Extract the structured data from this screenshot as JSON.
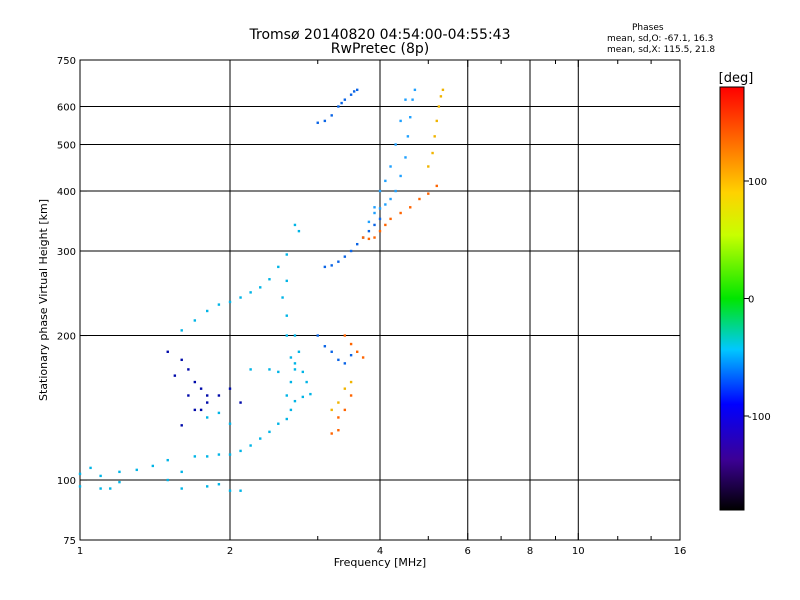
{
  "chart_data": {
    "type": "scatter",
    "title": "Tromsø 20140820 04:54:00-04:55:43",
    "subtitle": "RwPretec (8p)",
    "xlabel": "Frequency [MHz]",
    "ylabel": "Stationary phase Virtual Height [km]",
    "x_scale": "log",
    "y_scale": "log",
    "xlim": [
      1,
      16
    ],
    "ylim": [
      75,
      750
    ],
    "x_ticks": [
      1,
      2,
      4,
      6,
      8,
      10,
      16
    ],
    "x_tick_labels": [
      "1",
      "2",
      "4",
      "6",
      "8",
      "10",
      "16"
    ],
    "x_minor_ticks": [
      3,
      5,
      7,
      9,
      12,
      14
    ],
    "x_grid": [
      2,
      4,
      6,
      8,
      10
    ],
    "y_ticks": [
      75,
      100,
      200,
      300,
      400,
      500,
      600,
      750
    ],
    "y_tick_labels": [
      "75",
      "100",
      "200",
      "300",
      "400",
      "500",
      "600",
      "750"
    ],
    "y_grid": [
      100,
      200,
      300,
      400,
      500,
      600
    ],
    "grid": true,
    "legend_position": "top-right",
    "phases": {
      "header": "Phases",
      "o_stats": "mean, sd,O: -67.1, 16.3",
      "x_stats": "mean, sd,X: 115.5, 21.8"
    },
    "colorbar": {
      "label": "[deg]",
      "min": -180,
      "max": 180,
      "ticks": [
        100,
        0,
        -100
      ],
      "tick_labels": [
        "100",
        "0",
        "-100"
      ]
    },
    "series": [
      {
        "color": "#00b4e6",
        "phase_deg": -75,
        "points": [
          [
            1,
            103
          ],
          [
            1.05,
            106
          ],
          [
            1.1,
            102
          ],
          [
            1.2,
            104
          ],
          [
            1.3,
            105
          ],
          [
            1.4,
            107
          ],
          [
            1.5,
            110
          ],
          [
            1.6,
            104
          ],
          [
            1.7,
            112
          ],
          [
            1.8,
            112
          ],
          [
            1.9,
            113
          ],
          [
            2.0,
            113
          ],
          [
            2.1,
            115
          ],
          [
            2.2,
            118
          ],
          [
            2.3,
            122
          ],
          [
            2.4,
            126
          ],
          [
            2.5,
            131
          ],
          [
            2.6,
            134
          ],
          [
            2.65,
            140
          ],
          [
            2.7,
            146
          ],
          [
            2.8,
            149
          ],
          [
            2.9,
            151
          ],
          [
            2.0,
            131
          ],
          [
            1.9,
            138
          ],
          [
            1.8,
            135
          ],
          [
            1.6,
            205
          ],
          [
            1.7,
            215
          ],
          [
            1.8,
            225
          ],
          [
            1.9,
            232
          ],
          [
            2.0,
            235
          ],
          [
            2.1,
            240
          ],
          [
            2.2,
            246
          ],
          [
            2.3,
            252
          ],
          [
            2.4,
            262
          ],
          [
            2.5,
            278
          ],
          [
            2.6,
            295
          ],
          [
            2.7,
            340
          ],
          [
            2.75,
            330
          ],
          [
            2.6,
            260
          ],
          [
            2.55,
            240
          ],
          [
            2.6,
            220
          ],
          [
            2.6,
            200
          ],
          [
            2.65,
            180
          ],
          [
            2.7,
            200
          ],
          [
            2.7,
            170
          ],
          [
            2.8,
            168
          ],
          [
            2.85,
            160
          ],
          [
            2.2,
            170
          ],
          [
            2.4,
            170
          ],
          [
            2.5,
            168
          ],
          [
            2.6,
            150
          ],
          [
            2.65,
            160
          ],
          [
            2.7,
            175
          ],
          [
            2.75,
            185
          ],
          [
            1.0,
            97
          ],
          [
            1.1,
            96
          ],
          [
            1.15,
            96
          ],
          [
            1.2,
            99
          ],
          [
            1.5,
            100
          ],
          [
            1.6,
            96
          ],
          [
            1.8,
            97
          ],
          [
            1.9,
            98
          ],
          [
            2.0,
            95
          ],
          [
            2.1,
            95
          ]
        ]
      },
      {
        "color": "#0a64e6",
        "phase_deg": -110,
        "points": [
          [
            3.0,
            555
          ],
          [
            3.1,
            560
          ],
          [
            3.2,
            575
          ],
          [
            3.3,
            600
          ],
          [
            3.35,
            610
          ],
          [
            3.4,
            620
          ],
          [
            3.5,
            635
          ],
          [
            3.55,
            645
          ],
          [
            3.6,
            650
          ],
          [
            3.1,
            278
          ],
          [
            3.2,
            280
          ],
          [
            3.3,
            285
          ],
          [
            3.4,
            292
          ],
          [
            3.5,
            300
          ],
          [
            3.6,
            310
          ],
          [
            3.7,
            320
          ],
          [
            3.8,
            330
          ],
          [
            3.9,
            340
          ],
          [
            4.0,
            350
          ],
          [
            3.0,
            200
          ],
          [
            3.1,
            190
          ],
          [
            3.2,
            185
          ],
          [
            3.3,
            178
          ],
          [
            3.4,
            175
          ],
          [
            3.5,
            182
          ]
        ]
      },
      {
        "color": "#1ea0ff",
        "phase_deg": -85,
        "points": [
          [
            3.8,
            345
          ],
          [
            3.9,
            360
          ],
          [
            4.0,
            368
          ],
          [
            4.1,
            375
          ],
          [
            4.2,
            385
          ],
          [
            4.3,
            400
          ],
          [
            4.4,
            430
          ],
          [
            4.5,
            470
          ],
          [
            4.55,
            520
          ],
          [
            4.6,
            570
          ],
          [
            4.65,
            620
          ],
          [
            4.7,
            650
          ],
          [
            3.9,
            370
          ],
          [
            4.0,
            400
          ],
          [
            4.1,
            420
          ],
          [
            4.2,
            450
          ],
          [
            4.3,
            500
          ],
          [
            4.4,
            560
          ],
          [
            4.5,
            620
          ]
        ]
      },
      {
        "color": "#ff6400",
        "phase_deg": 130,
        "points": [
          [
            3.7,
            320
          ],
          [
            3.8,
            318
          ],
          [
            3.9,
            320
          ],
          [
            4.0,
            330
          ],
          [
            4.1,
            340
          ],
          [
            4.2,
            350
          ],
          [
            4.4,
            360
          ],
          [
            4.6,
            370
          ],
          [
            4.8,
            385
          ],
          [
            5.0,
            395
          ],
          [
            5.2,
            410
          ],
          [
            3.4,
            200
          ],
          [
            3.5,
            192
          ],
          [
            3.6,
            185
          ],
          [
            3.7,
            180
          ],
          [
            3.3,
            135
          ],
          [
            3.4,
            140
          ],
          [
            3.5,
            150
          ],
          [
            3.2,
            125
          ],
          [
            3.3,
            127
          ]
        ]
      },
      {
        "color": "#f0b400",
        "phase_deg": 95,
        "points": [
          [
            5.0,
            450
          ],
          [
            5.1,
            480
          ],
          [
            5.15,
            520
          ],
          [
            5.2,
            560
          ],
          [
            5.25,
            600
          ],
          [
            5.3,
            630
          ],
          [
            5.35,
            650
          ],
          [
            3.2,
            140
          ],
          [
            3.3,
            145
          ],
          [
            3.4,
            155
          ],
          [
            3.5,
            160
          ]
        ]
      },
      {
        "color": "#000aaa",
        "phase_deg": -135,
        "points": [
          [
            1.5,
            185
          ],
          [
            1.6,
            178
          ],
          [
            1.65,
            170
          ],
          [
            1.7,
            160
          ],
          [
            1.75,
            155
          ],
          [
            1.8,
            150
          ],
          [
            1.6,
            130
          ],
          [
            1.7,
            140
          ],
          [
            1.8,
            145
          ],
          [
            1.9,
            150
          ],
          [
            2.0,
            155
          ],
          [
            2.1,
            145
          ],
          [
            1.55,
            165
          ],
          [
            1.65,
            150
          ],
          [
            1.75,
            140
          ]
        ]
      }
    ]
  }
}
